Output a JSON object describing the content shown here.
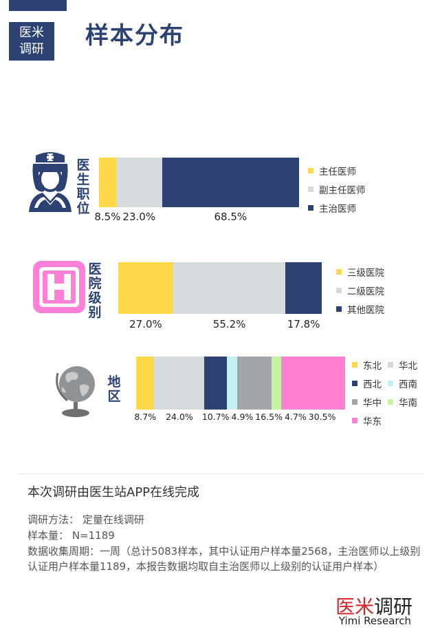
{
  "badge": {
    "line1": "医米",
    "line2": "调研"
  },
  "page_title": "样本分布",
  "colors": {
    "navy": "#2b4273",
    "yellow": "#ffd94a",
    "lightgray": "#d6dcde",
    "gray": "#a3a6a8",
    "lightblue": "#c8eef5",
    "lightgreen": "#c6f3a2",
    "pink": "#ff7fd2",
    "brand_red": "#d8262b"
  },
  "chart_data": [
    {
      "type": "bar",
      "orientation": "horizontal-stacked",
      "title": "医生职位",
      "series": [
        {
          "name": "主任医师",
          "value": 8.5,
          "label": "8.5%",
          "color": "#ffd94a"
        },
        {
          "name": "副主任医师",
          "value": 23.0,
          "label": "23.0%",
          "color": "#d6dcde"
        },
        {
          "name": "主治医师",
          "value": 68.5,
          "label": "68.5%",
          "color": "#2b4273"
        }
      ]
    },
    {
      "type": "bar",
      "orientation": "horizontal-stacked",
      "title": "医院级别",
      "series": [
        {
          "name": "三级医院",
          "value": 27.0,
          "label": "27.0%",
          "color": "#ffd94a"
        },
        {
          "name": "二级医院",
          "value": 55.2,
          "label": "55.2%",
          "color": "#d6dcde"
        },
        {
          "name": "其他医院",
          "value": 17.8,
          "label": "17.8%",
          "color": "#2b4273"
        }
      ]
    },
    {
      "type": "bar",
      "orientation": "horizontal-stacked",
      "title": "地区",
      "series": [
        {
          "name": "东北",
          "value": 8.7,
          "label": "8.7%",
          "color": "#ffd94a"
        },
        {
          "name": "华北",
          "value": 24.0,
          "label": "24.0%",
          "color": "#d6dcde"
        },
        {
          "name": "西北",
          "value": 10.7,
          "label": "10.7%",
          "color": "#2b4273"
        },
        {
          "name": "西南",
          "value": 4.9,
          "label": "4.9%",
          "color": "#c8eef5"
        },
        {
          "name": "华中",
          "value": 16.5,
          "label": "16.5%",
          "color": "#a3a6a8"
        },
        {
          "name": "华南",
          "value": 4.7,
          "label": "4.7%",
          "color": "#c6f3a2"
        },
        {
          "name": "华东",
          "value": 30.5,
          "label": "30.5%",
          "color": "#ff7fd2"
        }
      ]
    }
  ],
  "footer": {
    "note_title": "本次调研由医生站APP在线完成",
    "method_label": "调研方法",
    "method_value": "定量在线调研",
    "sample_label": "样本量",
    "sample_value": "N=1189",
    "period_label": "数据收集周期",
    "period_value": "一周（总计5083样本，其中认证用户样本量2568，主治医师以上级别认证用户样本量1189，本报告数据均取自主治医师以上级别的认证用户样本）",
    "brand_cn_a": "医米",
    "brand_cn_b": "调研",
    "brand_en": "Yimi Research"
  }
}
